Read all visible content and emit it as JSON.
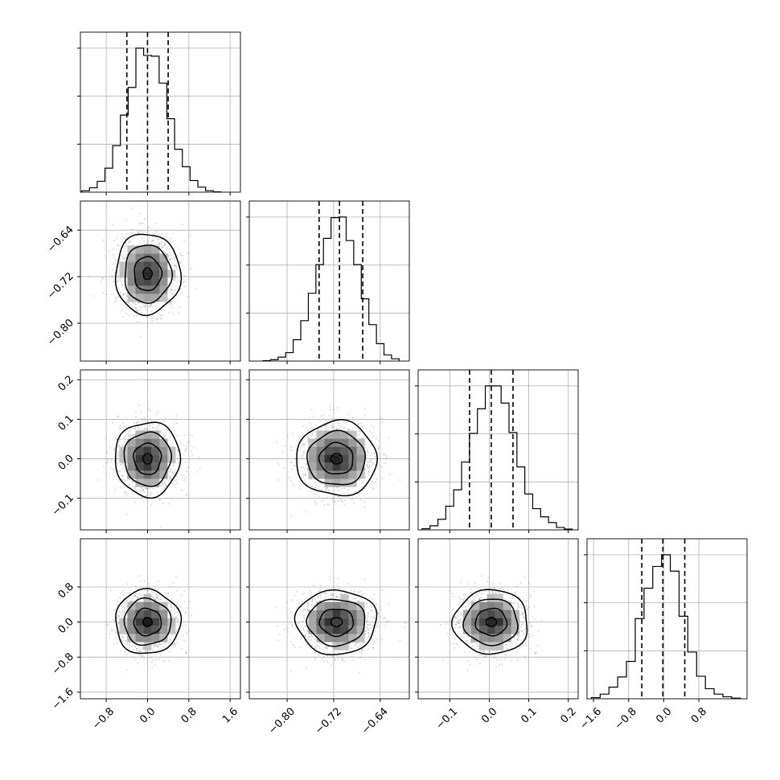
{
  "chart_data": {
    "type": "corner",
    "grid": true,
    "params": [
      {
        "range": [
          -1.3,
          1.8
        ],
        "ticks": [
          -0.8,
          0.0,
          0.8,
          1.6
        ],
        "tick_labels": [
          "−0.8",
          "0.0",
          "0.8",
          "1.6"
        ],
        "quantiles": [
          -0.4,
          0.0,
          0.4
        ],
        "hist": [
          {
            "x": -1.35,
            "count": 5
          },
          {
            "x": -1.2,
            "count": 20
          },
          {
            "x": -1.05,
            "count": 60
          },
          {
            "x": -0.9,
            "count": 150
          },
          {
            "x": -0.75,
            "count": 330
          },
          {
            "x": -0.6,
            "count": 640
          },
          {
            "x": -0.45,
            "count": 1060
          },
          {
            "x": -0.3,
            "count": 1440
          },
          {
            "x": -0.15,
            "count": 1980
          },
          {
            "x": 0.0,
            "count": 1880
          },
          {
            "x": 0.15,
            "count": 1870
          },
          {
            "x": 0.3,
            "count": 1500
          },
          {
            "x": 0.45,
            "count": 1010
          },
          {
            "x": 0.6,
            "count": 590
          },
          {
            "x": 0.75,
            "count": 350
          },
          {
            "x": 0.9,
            "count": 160
          },
          {
            "x": 1.05,
            "count": 70
          },
          {
            "x": 1.2,
            "count": 20
          },
          {
            "x": 1.35,
            "count": 5
          }
        ]
      },
      {
        "range": [
          -0.865,
          -0.59
        ],
        "ticks": [
          -0.8,
          -0.72,
          -0.64
        ],
        "tick_labels": [
          "−0.80",
          "−0.72",
          "−0.64"
        ],
        "quantiles": [
          -0.745,
          -0.71,
          -0.67
        ],
        "hist": [
          {
            "x": -0.835,
            "count": 8
          },
          {
            "x": -0.822,
            "count": 25
          },
          {
            "x": -0.809,
            "count": 70
          },
          {
            "x": -0.796,
            "count": 150
          },
          {
            "x": -0.783,
            "count": 380
          },
          {
            "x": -0.77,
            "count": 720
          },
          {
            "x": -0.757,
            "count": 1210
          },
          {
            "x": -0.744,
            "count": 1720
          },
          {
            "x": -0.731,
            "count": 2190
          },
          {
            "x": -0.718,
            "count": 2560
          },
          {
            "x": -0.705,
            "count": 2570
          },
          {
            "x": -0.692,
            "count": 2150
          },
          {
            "x": -0.679,
            "count": 1720
          },
          {
            "x": -0.666,
            "count": 1110
          },
          {
            "x": -0.653,
            "count": 650
          },
          {
            "x": -0.64,
            "count": 310
          },
          {
            "x": -0.627,
            "count": 110
          },
          {
            "x": -0.614,
            "count": 40
          }
        ]
      },
      {
        "range": [
          -0.18,
          0.225
        ],
        "ticks": [
          -0.1,
          0.0,
          0.1,
          0.2
        ],
        "tick_labels": [
          "−0.1",
          "0.0",
          "0.1",
          "0.2"
        ],
        "quantiles": [
          -0.05,
          0.005,
          0.06
        ],
        "hist": [
          {
            "x": -0.16,
            "count": 15
          },
          {
            "x": -0.14,
            "count": 50
          },
          {
            "x": -0.12,
            "count": 130
          },
          {
            "x": -0.1,
            "count": 290
          },
          {
            "x": -0.08,
            "count": 490
          },
          {
            "x": -0.06,
            "count": 830
          },
          {
            "x": -0.04,
            "count": 1180
          },
          {
            "x": -0.02,
            "count": 1480
          },
          {
            "x": 0.0,
            "count": 1760
          },
          {
            "x": 0.02,
            "count": 1760
          },
          {
            "x": 0.04,
            "count": 1550
          },
          {
            "x": 0.06,
            "count": 1190
          },
          {
            "x": 0.08,
            "count": 770
          },
          {
            "x": 0.1,
            "count": 440
          },
          {
            "x": 0.12,
            "count": 260
          },
          {
            "x": 0.14,
            "count": 160
          },
          {
            "x": 0.16,
            "count": 90
          },
          {
            "x": 0.18,
            "count": 30
          },
          {
            "x": 0.2,
            "count": 10
          }
        ]
      },
      {
        "range": [
          -1.75,
          1.9
        ],
        "ticks": [
          -1.6,
          -0.8,
          0.0,
          0.8
        ],
        "tick_labels": [
          "−1.6",
          "−0.8",
          "0.0",
          "0.8"
        ],
        "quantiles": [
          -0.5,
          -0.02,
          0.48
        ],
        "hist": [
          {
            "x": -1.55,
            "count": 15
          },
          {
            "x": -1.35,
            "count": 60
          },
          {
            "x": -1.15,
            "count": 150
          },
          {
            "x": -0.95,
            "count": 280
          },
          {
            "x": -0.75,
            "count": 480
          },
          {
            "x": -0.55,
            "count": 1030
          },
          {
            "x": -0.35,
            "count": 1420
          },
          {
            "x": -0.15,
            "count": 1700
          },
          {
            "x": 0.05,
            "count": 1850
          },
          {
            "x": 0.25,
            "count": 1640
          },
          {
            "x": 0.45,
            "count": 1060
          },
          {
            "x": 0.65,
            "count": 600
          },
          {
            "x": 0.85,
            "count": 290
          },
          {
            "x": 1.05,
            "count": 130
          },
          {
            "x": 1.25,
            "count": 60
          },
          {
            "x": 1.45,
            "count": 25
          },
          {
            "x": 1.65,
            "count": 8
          }
        ]
      }
    ],
    "pairs": [
      {
        "x": 0,
        "y": 1,
        "center": [
          0.0,
          -0.715
        ],
        "spread": [
          0.3,
          0.033
        ],
        "levels": [
          1.0,
          0.72,
          0.42,
          0.14
        ]
      },
      {
        "x": 0,
        "y": 2,
        "center": [
          0.0,
          0.0
        ],
        "spread": [
          0.3,
          0.045
        ],
        "levels": [
          1.0,
          0.72,
          0.42,
          0.14
        ]
      },
      {
        "x": 1,
        "y": 2,
        "center": [
          -0.715,
          0.0
        ],
        "spread": [
          0.033,
          0.045
        ],
        "levels": [
          1.0,
          0.72,
          0.42,
          0.14
        ]
      },
      {
        "x": 0,
        "y": 3,
        "center": [
          0.0,
          0.0
        ],
        "spread": [
          0.3,
          0.35
        ],
        "levels": [
          1.0,
          0.72,
          0.42,
          0.14
        ]
      },
      {
        "x": 1,
        "y": 3,
        "center": [
          -0.715,
          0.0
        ],
        "spread": [
          0.033,
          0.35
        ],
        "levels": [
          1.0,
          0.72,
          0.42,
          0.14
        ]
      },
      {
        "x": 2,
        "y": 3,
        "center": [
          0.005,
          0.0
        ],
        "spread": [
          0.045,
          0.35
        ],
        "levels": [
          1.0,
          0.72,
          0.42,
          0.14
        ]
      }
    ],
    "colors": {
      "line": "#000000",
      "grid": "#b0b0b0",
      "points": "#7f7f7f"
    }
  }
}
